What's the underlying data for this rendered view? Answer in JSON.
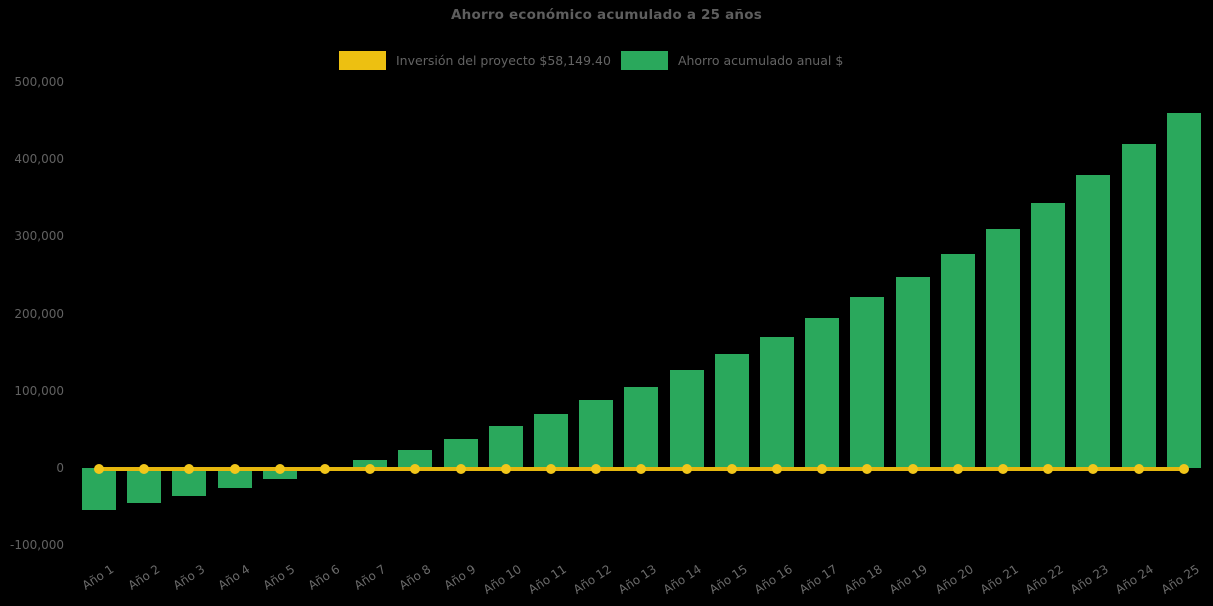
{
  "title": "Ahorro económico acumulado a 25 años",
  "legend": {
    "items": [
      {
        "id": "investment",
        "label": "Inversión del proyecto $58,149.40",
        "color": "#edc011"
      },
      {
        "id": "savings",
        "label": "Ahorro acumulado anual $",
        "color": "#2aa85c"
      }
    ]
  },
  "chart_data": {
    "type": "bar",
    "title": "Ahorro económico acumulado a 25 años",
    "categories": [
      "Año 1",
      "Año 2",
      "Año 3",
      "Año 4",
      "Año 5",
      "Año 6",
      "Año 7",
      "Año 8",
      "Año 9",
      "Año 10",
      "Año 11",
      "Año 12",
      "Año 13",
      "Año 14",
      "Año 15",
      "Año 16",
      "Año 17",
      "Año 18",
      "Año 19",
      "Año 20",
      "Año 21",
      "Año 22",
      "Año 23",
      "Año 24",
      "Año 25"
    ],
    "series": [
      {
        "name": "Ahorro acumulado anual $",
        "type": "bar",
        "color": "#2aa85c",
        "values": [
          -54000,
          -45000,
          -36000,
          -26000,
          -14000,
          -1500,
          10500,
          23000,
          38000,
          54000,
          70000,
          88000,
          105000,
          127000,
          148000,
          170000,
          195000,
          221000,
          248000,
          277000,
          310000,
          344000,
          380000,
          420000,
          460000
        ]
      },
      {
        "name": "Inversión del proyecto $58,149.40",
        "type": "line",
        "color": "#e6b70e",
        "marker_color": "#f2c61a",
        "constant_value": 0,
        "note": "flat break-even line with a round marker at every year"
      }
    ],
    "investment_amount_label": "$58,149.40",
    "xlabel": "",
    "ylabel": "",
    "y_ticks": [
      {
        "value": 500000,
        "label": "500,000"
      },
      {
        "value": 400000,
        "label": "400,000"
      },
      {
        "value": 300000,
        "label": "300,000"
      },
      {
        "value": 200000,
        "label": "200,000"
      },
      {
        "value": 100000,
        "label": "100,000"
      },
      {
        "value": 0,
        "label": "0"
      },
      {
        "value": -100000,
        "label": "-100,000"
      }
    ],
    "ylim": [
      -100000,
      500000
    ],
    "grid": false,
    "legend_position": "top-center",
    "background_color": "#000000",
    "text_color": "#636363"
  }
}
